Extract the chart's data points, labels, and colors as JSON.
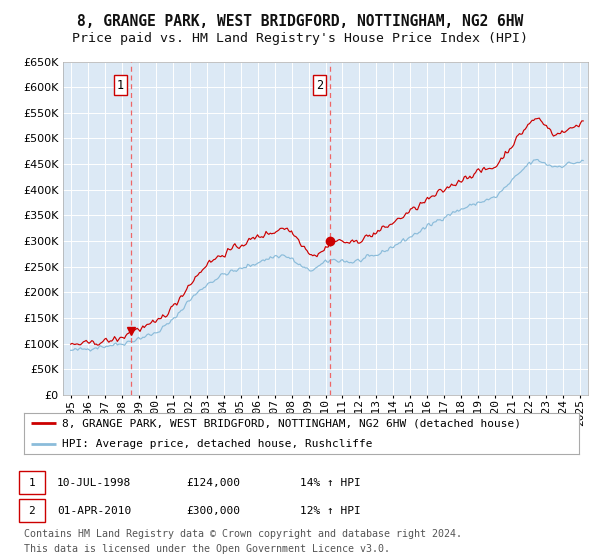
{
  "title": "8, GRANGE PARK, WEST BRIDGFORD, NOTTINGHAM, NG2 6HW",
  "subtitle": "Price paid vs. HM Land Registry's House Price Index (HPI)",
  "background_color": "#ffffff",
  "plot_bg_color": "#dce9f5",
  "grid_color": "#ffffff",
  "hpi_color": "#8bbcda",
  "price_color": "#cc0000",
  "vline_color": "#ee6666",
  "purchase1_date_num": 1998.53,
  "purchase1_price": 124000,
  "purchase2_date_num": 2010.25,
  "purchase2_price": 300000,
  "ylim": [
    0,
    650000
  ],
  "yticks": [
    0,
    50000,
    100000,
    150000,
    200000,
    250000,
    300000,
    350000,
    400000,
    450000,
    500000,
    550000,
    600000,
    650000
  ],
  "xticks": [
    1995,
    1996,
    1997,
    1998,
    1999,
    2000,
    2001,
    2002,
    2003,
    2004,
    2005,
    2006,
    2007,
    2008,
    2009,
    2010,
    2011,
    2012,
    2013,
    2014,
    2015,
    2016,
    2017,
    2018,
    2019,
    2020,
    2021,
    2022,
    2023,
    2024,
    2025
  ],
  "xlim_lo": 1994.55,
  "xlim_hi": 2025.45,
  "legend_entry1": "8, GRANGE PARK, WEST BRIDGFORD, NOTTINGHAM, NG2 6HW (detached house)",
  "legend_entry2": "HPI: Average price, detached house, Rushcliffe",
  "ann1_label": "1",
  "ann1_date": "10-JUL-1998",
  "ann1_price": "£124,000",
  "ann1_hpi": "14% ↑ HPI",
  "ann2_label": "2",
  "ann2_date": "01-APR-2010",
  "ann2_price": "£300,000",
  "ann2_hpi": "12% ↑ HPI",
  "footer_line1": "Contains HM Land Registry data © Crown copyright and database right 2024.",
  "footer_line2": "This data is licensed under the Open Government Licence v3.0.",
  "title_fontsize": 10.5,
  "subtitle_fontsize": 9.5,
  "tick_fontsize": 8,
  "legend_fontsize": 8,
  "annot_fontsize": 8,
  "footer_fontsize": 7.2
}
